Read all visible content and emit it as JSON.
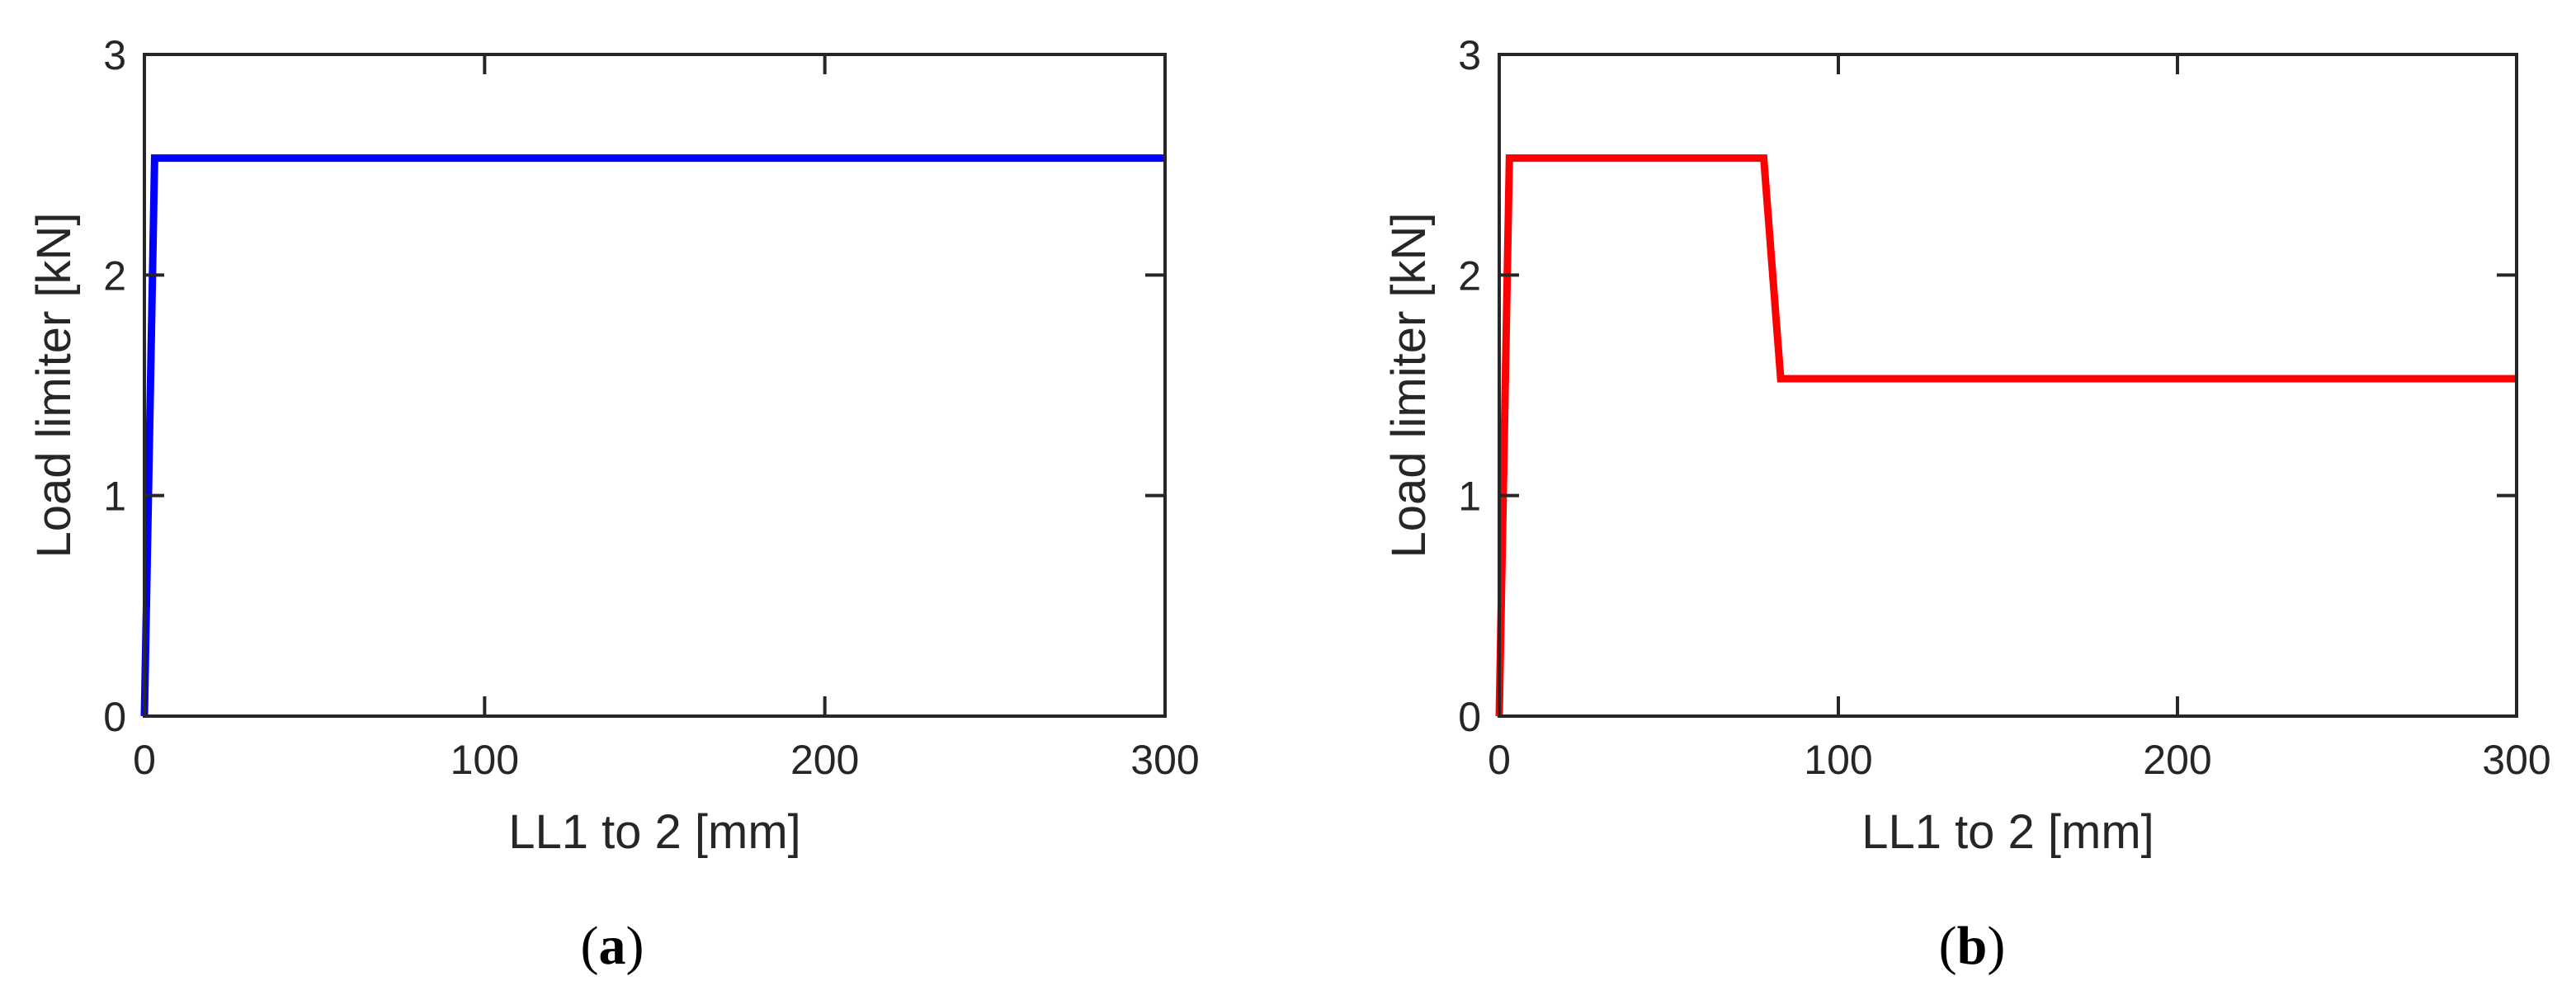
{
  "chart_data": [
    {
      "type": "line",
      "caption_open": "(",
      "caption_letter": "a",
      "caption_close": ")",
      "xlabel": "LL1 to 2 [mm]",
      "ylabel": "Load limiter [kN]",
      "xlim": [
        0,
        300
      ],
      "ylim": [
        0,
        3
      ],
      "xticks": [
        "0",
        "100",
        "200",
        "300"
      ],
      "yticks": [
        "0",
        "1",
        "2",
        "3"
      ],
      "grid": false,
      "series": [
        {
          "color": "#0000ff",
          "x": [
            0,
            3,
            300
          ],
          "y": [
            0,
            2.53,
            2.53
          ]
        }
      ]
    },
    {
      "type": "line",
      "caption_open": "(",
      "caption_letter": "b",
      "caption_close": ")",
      "xlabel": "LL1 to 2 [mm]",
      "ylabel": "Load limiter [kN]",
      "xlim": [
        0,
        300
      ],
      "ylim": [
        0,
        3
      ],
      "xticks": [
        "0",
        "100",
        "200",
        "300"
      ],
      "yticks": [
        "0",
        "1",
        "2",
        "3"
      ],
      "grid": false,
      "series": [
        {
          "color": "#ff0000",
          "x": [
            0,
            3,
            78,
            83,
            300
          ],
          "y": [
            0,
            2.53,
            2.53,
            1.53,
            1.53
          ]
        }
      ]
    }
  ]
}
